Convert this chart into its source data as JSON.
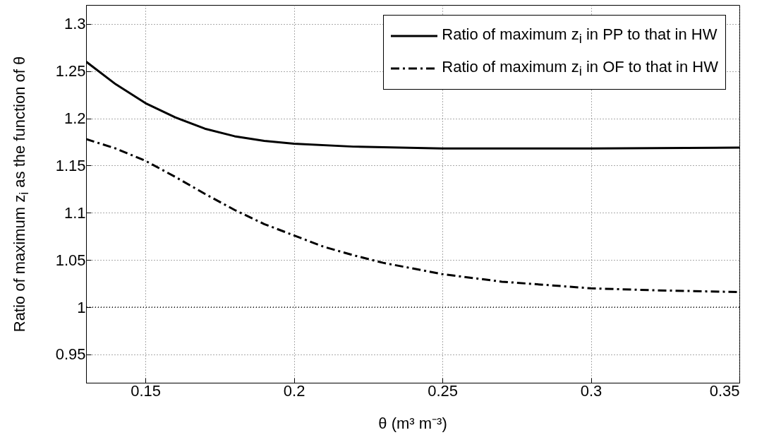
{
  "chart_data": {
    "type": "line",
    "xlabel": "θ (m³ m⁻³)",
    "ylabel": "Ratio of maximum z$_{i}$ as the function of θ",
    "xlim": [
      0.13,
      0.35
    ],
    "xticks": [
      0.15,
      0.2,
      0.25,
      0.3,
      0.35
    ],
    "ylim": [
      0.92,
      1.32
    ],
    "yticks": [
      0.95,
      1,
      1.05,
      1.1,
      1.15,
      1.2,
      1.25,
      1.3
    ],
    "grid": true,
    "legend": "top right",
    "marker": "none",
    "ref_lines": [
      {
        "axis": "y",
        "value": 1,
        "line_style": "dotted",
        "color": "#000000"
      }
    ],
    "series": [
      {
        "name": "Ratio of maximum z$_{i}$ in PP to that in HW",
        "color": "#000000",
        "line_style": "solid",
        "x": [
          0.13,
          0.14,
          0.15,
          0.16,
          0.17,
          0.18,
          0.19,
          0.2,
          0.22,
          0.25,
          0.3,
          0.35
        ],
        "values": [
          1.26,
          1.236,
          1.216,
          1.201,
          1.189,
          1.181,
          1.176,
          1.173,
          1.17,
          1.168,
          1.168,
          1.169
        ]
      },
      {
        "name": "Ratio of maximum z$_{i}$ in OF to that in HW",
        "color": "#000000",
        "line_style": "dashdot",
        "x": [
          0.13,
          0.14,
          0.15,
          0.16,
          0.17,
          0.18,
          0.19,
          0.2,
          0.21,
          0.22,
          0.23,
          0.25,
          0.27,
          0.3,
          0.32,
          0.35
        ],
        "values": [
          1.178,
          1.168,
          1.155,
          1.138,
          1.12,
          1.103,
          1.088,
          1.076,
          1.064,
          1.055,
          1.047,
          1.035,
          1.027,
          1.02,
          1.018,
          1.016
        ]
      }
    ]
  }
}
